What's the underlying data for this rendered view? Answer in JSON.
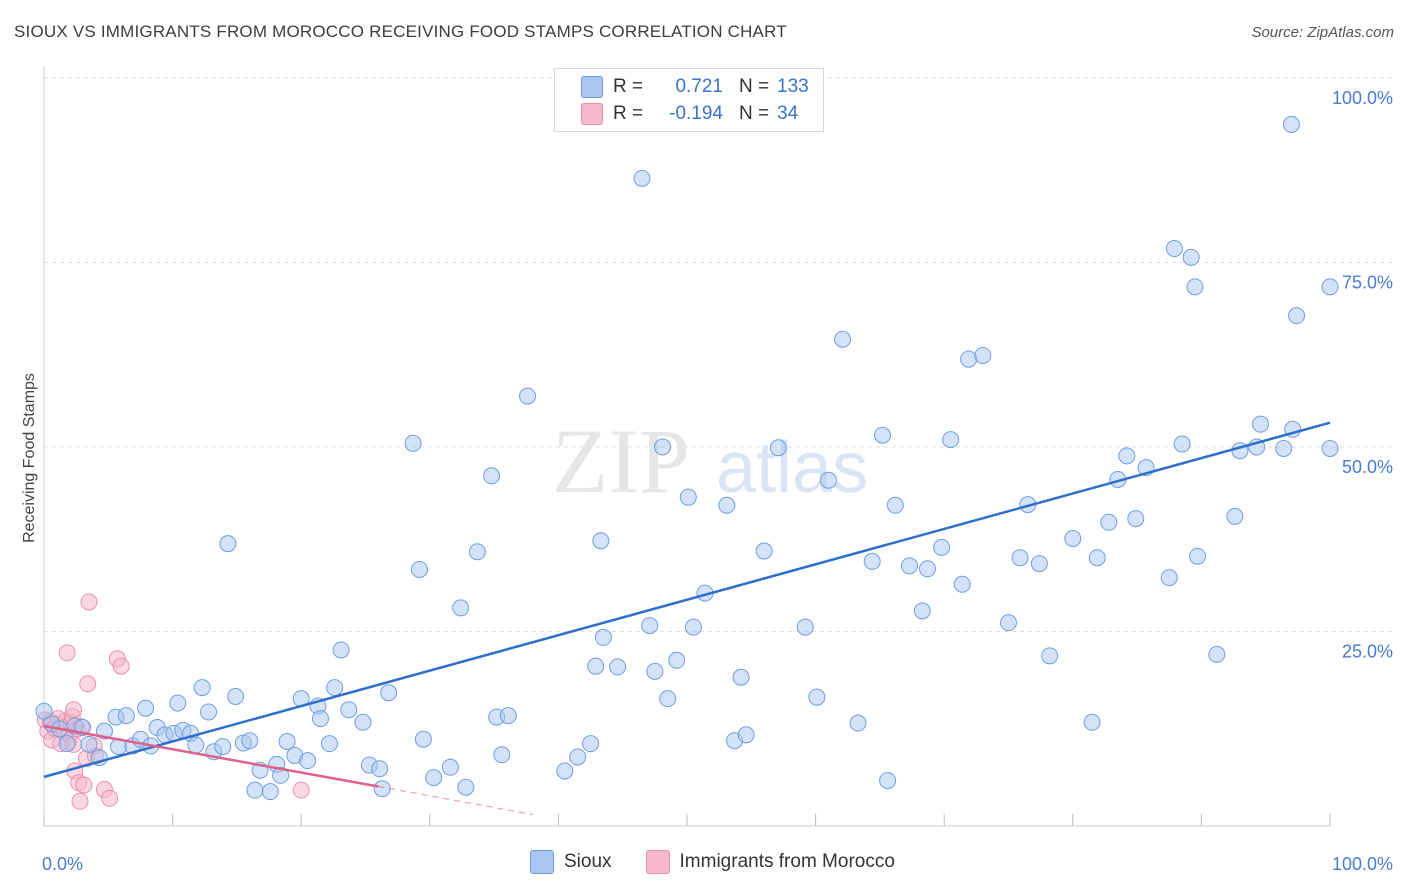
{
  "title": "SIOUX VS IMMIGRANTS FROM MOROCCO RECEIVING FOOD STAMPS CORRELATION CHART",
  "source": "Source: ZipAtlas.com",
  "watermark": {
    "zip": "ZIP",
    "atlas": "atlas"
  },
  "colors": {
    "sioux_fill": "#a8c6f0",
    "sioux_stroke": "#6f9ee0",
    "sioux_line": "#2f6fcc",
    "morocco_fill": "#f6b8cb",
    "morocco_stroke": "#ec8fac",
    "morocco_line": "#e0608b",
    "tick_label": "#4a7bd0",
    "grid": "#dddddd"
  },
  "legend": {
    "rows": [
      {
        "r_label": "R =",
        "r_value": "0.721",
        "n_label": "N =",
        "n_value": "133"
      },
      {
        "r_label": "R =",
        "r_value": "-0.194",
        "n_label": "N =",
        "n_value": "34"
      }
    ]
  },
  "bottom_legend": {
    "sioux": "Sioux",
    "morocco": "Immigrants from Morocco"
  },
  "chart_data": {
    "type": "scatter",
    "title": "SIOUX VS IMMIGRANTS FROM MOROCCO RECEIVING FOOD STAMPS CORRELATION CHART",
    "xlabel": "",
    "ylabel": "Receiving Food Stamps",
    "xlim": [
      0,
      100
    ],
    "ylim": [
      0,
      100
    ],
    "x_tick_labels": [
      "0.0%",
      "100.0%"
    ],
    "y_tick_labels": [
      {
        "value": 100,
        "label": "100.0%"
      },
      {
        "value": 75,
        "label": "75.0%"
      },
      {
        "value": 50,
        "label": "50.0%"
      },
      {
        "value": 25,
        "label": "25.0%"
      }
    ],
    "grid": true,
    "series": [
      {
        "name": "Sioux",
        "r": 0.721,
        "n": 133,
        "trend": {
          "x": [
            0,
            100
          ],
          "y": [
            5.3,
            53.3
          ]
        },
        "points": [
          [
            0,
            14.2
          ],
          [
            0.6,
            12.5
          ],
          [
            1.2,
            11.8
          ],
          [
            1.8,
            9.8
          ],
          [
            2.4,
            12.2
          ],
          [
            3.0,
            12.0
          ],
          [
            3.5,
            9.7
          ],
          [
            4.3,
            7.9
          ],
          [
            4.7,
            11.5
          ],
          [
            5.6,
            13.4
          ],
          [
            5.8,
            9.4
          ],
          [
            6.4,
            13.6
          ],
          [
            6.9,
            9.5
          ],
          [
            7.5,
            10.4
          ],
          [
            7.9,
            14.6
          ],
          [
            8.3,
            9.5
          ],
          [
            8.8,
            12.0
          ],
          [
            9.4,
            11.0
          ],
          [
            10.1,
            11.2
          ],
          [
            10.4,
            15.3
          ],
          [
            10.8,
            11.6
          ],
          [
            11.4,
            11.2
          ],
          [
            11.8,
            9.6
          ],
          [
            12.3,
            17.4
          ],
          [
            12.8,
            14.1
          ],
          [
            13.2,
            8.7
          ],
          [
            13.9,
            9.4
          ],
          [
            14.3,
            36.9
          ],
          [
            14.9,
            16.2
          ],
          [
            15.5,
            9.9
          ],
          [
            16.0,
            10.2
          ],
          [
            16.4,
            3.5
          ],
          [
            16.8,
            6.2
          ],
          [
            17.6,
            3.3
          ],
          [
            18.1,
            7.0
          ],
          [
            18.4,
            5.5
          ],
          [
            18.9,
            10.1
          ],
          [
            19.5,
            8.2
          ],
          [
            20.0,
            15.9
          ],
          [
            20.5,
            7.5
          ],
          [
            21.3,
            14.9
          ],
          [
            21.5,
            13.2
          ],
          [
            22.2,
            9.8
          ],
          [
            22.6,
            17.4
          ],
          [
            23.1,
            22.5
          ],
          [
            23.7,
            14.4
          ],
          [
            24.8,
            12.7
          ],
          [
            25.3,
            6.9
          ],
          [
            26.1,
            6.4
          ],
          [
            26.3,
            3.7
          ],
          [
            26.8,
            16.7
          ],
          [
            28.7,
            50.5
          ],
          [
            29.2,
            33.4
          ],
          [
            29.5,
            10.4
          ],
          [
            30.3,
            5.2
          ],
          [
            31.6,
            6.6
          ],
          [
            32.4,
            28.2
          ],
          [
            32.8,
            3.9
          ],
          [
            33.7,
            35.8
          ],
          [
            34.8,
            46.1
          ],
          [
            35.2,
            13.4
          ],
          [
            35.6,
            8.3
          ],
          [
            36.1,
            13.6
          ],
          [
            37.6,
            56.9
          ],
          [
            40.5,
            6.1
          ],
          [
            41.5,
            8.0
          ],
          [
            42.5,
            9.8
          ],
          [
            42.9,
            20.3
          ],
          [
            43.3,
            37.3
          ],
          [
            43.5,
            24.2
          ],
          [
            44.6,
            20.2
          ],
          [
            46.5,
            86.4
          ],
          [
            47.1,
            25.8
          ],
          [
            47.5,
            19.6
          ],
          [
            48.1,
            50.0
          ],
          [
            48.5,
            15.9
          ],
          [
            49.2,
            21.1
          ],
          [
            50.1,
            43.2
          ],
          [
            50.5,
            25.6
          ],
          [
            51.4,
            30.2
          ],
          [
            53.1,
            42.1
          ],
          [
            53.7,
            10.2
          ],
          [
            54.2,
            18.8
          ],
          [
            54.6,
            11.0
          ],
          [
            56.0,
            35.9
          ],
          [
            57.1,
            49.9
          ],
          [
            59.2,
            25.6
          ],
          [
            60.1,
            16.1
          ],
          [
            61.0,
            45.5
          ],
          [
            62.1,
            64.6
          ],
          [
            63.3,
            12.6
          ],
          [
            64.4,
            34.5
          ],
          [
            65.2,
            51.6
          ],
          [
            65.6,
            4.8
          ],
          [
            66.2,
            42.1
          ],
          [
            67.3,
            33.9
          ],
          [
            68.3,
            27.8
          ],
          [
            68.7,
            33.5
          ],
          [
            69.8,
            36.4
          ],
          [
            70.5,
            51.0
          ],
          [
            71.4,
            31.4
          ],
          [
            71.9,
            61.9
          ],
          [
            73.0,
            62.4
          ],
          [
            75.0,
            26.2
          ],
          [
            75.9,
            35.0
          ],
          [
            76.5,
            42.2
          ],
          [
            77.4,
            34.2
          ],
          [
            78.2,
            21.7
          ],
          [
            80.0,
            37.6
          ],
          [
            81.5,
            12.7
          ],
          [
            81.9,
            35.0
          ],
          [
            82.8,
            39.8
          ],
          [
            83.5,
            45.6
          ],
          [
            84.2,
            48.8
          ],
          [
            84.9,
            40.3
          ],
          [
            85.7,
            47.2
          ],
          [
            87.5,
            32.3
          ],
          [
            87.9,
            76.9
          ],
          [
            88.5,
            50.4
          ],
          [
            89.2,
            75.7
          ],
          [
            89.5,
            71.7
          ],
          [
            89.7,
            35.2
          ],
          [
            91.2,
            21.9
          ],
          [
            92.6,
            40.6
          ],
          [
            93.0,
            49.5
          ],
          [
            94.3,
            50.0
          ],
          [
            94.6,
            53.1
          ],
          [
            96.4,
            49.8
          ],
          [
            97.0,
            93.7
          ],
          [
            97.1,
            52.4
          ],
          [
            97.4,
            67.8
          ],
          [
            100,
            71.7
          ],
          [
            100,
            49.8
          ]
        ]
      },
      {
        "name": "Immigrants from Morocco",
        "r": -0.194,
        "n": 34,
        "trend": {
          "x": [
            0,
            26.0
          ],
          "y": [
            12.2,
            4.0
          ]
        },
        "trend_dashed": {
          "x": [
            26.0,
            38.0
          ],
          "y": [
            4.0,
            0.2
          ]
        },
        "points": [
          [
            0.1,
            13.0
          ],
          [
            0.3,
            11.5
          ],
          [
            0.5,
            12.8
          ],
          [
            0.6,
            10.3
          ],
          [
            0.8,
            11.9
          ],
          [
            1.0,
            12.4
          ],
          [
            1.1,
            13.2
          ],
          [
            1.3,
            9.8
          ],
          [
            1.4,
            12.0
          ],
          [
            1.6,
            11.4
          ],
          [
            1.7,
            12.9
          ],
          [
            1.8,
            22.1
          ],
          [
            1.9,
            10.1
          ],
          [
            2.0,
            11.0
          ],
          [
            2.1,
            12.6
          ],
          [
            2.2,
            13.5
          ],
          [
            2.3,
            14.4
          ],
          [
            2.3,
            9.7
          ],
          [
            2.4,
            6.1
          ],
          [
            2.6,
            11.8
          ],
          [
            2.7,
            4.5
          ],
          [
            2.8,
            2.0
          ],
          [
            2.9,
            12.1
          ],
          [
            3.1,
            4.2
          ],
          [
            3.3,
            7.8
          ],
          [
            3.4,
            17.9
          ],
          [
            3.5,
            29.0
          ],
          [
            3.9,
            9.5
          ],
          [
            4.0,
            8.1
          ],
          [
            4.7,
            3.6
          ],
          [
            5.1,
            2.4
          ],
          [
            5.7,
            21.3
          ],
          [
            6.0,
            20.3
          ],
          [
            20.0,
            3.5
          ]
        ]
      }
    ]
  }
}
